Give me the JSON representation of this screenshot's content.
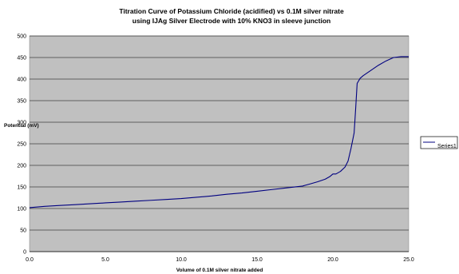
{
  "chart_data": {
    "type": "line",
    "title_line1": "Titration Curve of Potassium Chloride (acidified)  vs 0.1M silver nitrate",
    "title_line2": "using IJAg Silver Electrode with 10% KNO3 in sleeve junction",
    "xlabel": "Volume of 0.1M silver nitrate added",
    "ylabel": "Potential (mV)",
    "xlim": [
      0,
      25
    ],
    "ylim": [
      0,
      500
    ],
    "xticks": [
      "0.0",
      "5.0",
      "10.0",
      "15.0",
      "20.0",
      "25.0"
    ],
    "yticks": [
      "0",
      "50",
      "100",
      "150",
      "200",
      "250",
      "300",
      "350",
      "400",
      "450",
      "500"
    ],
    "grid": true,
    "legend_position": "right",
    "plot_background": "#c0c0c0",
    "series": [
      {
        "name": "Series1",
        "color": "#000080",
        "x": [
          0,
          1,
          2,
          3,
          4,
          5,
          6,
          7,
          8,
          9,
          10,
          11,
          12,
          13,
          14,
          15,
          16,
          17,
          18,
          18.5,
          19,
          19.5,
          19.8,
          20.0,
          20.2,
          20.5,
          20.8,
          21.0,
          21.2,
          21.4,
          21.5,
          21.6,
          21.8,
          22.0,
          22.5,
          23.0,
          23.5,
          24.0,
          24.5,
          25.0
        ],
        "y": [
          102,
          105,
          107,
          109,
          111,
          113,
          115,
          117,
          119,
          121,
          123,
          126,
          129,
          133,
          136,
          140,
          144,
          148,
          152,
          157,
          162,
          168,
          174,
          180,
          180,
          186,
          196,
          210,
          240,
          275,
          330,
          390,
          402,
          408,
          420,
          432,
          442,
          450,
          452,
          452
        ]
      }
    ]
  }
}
